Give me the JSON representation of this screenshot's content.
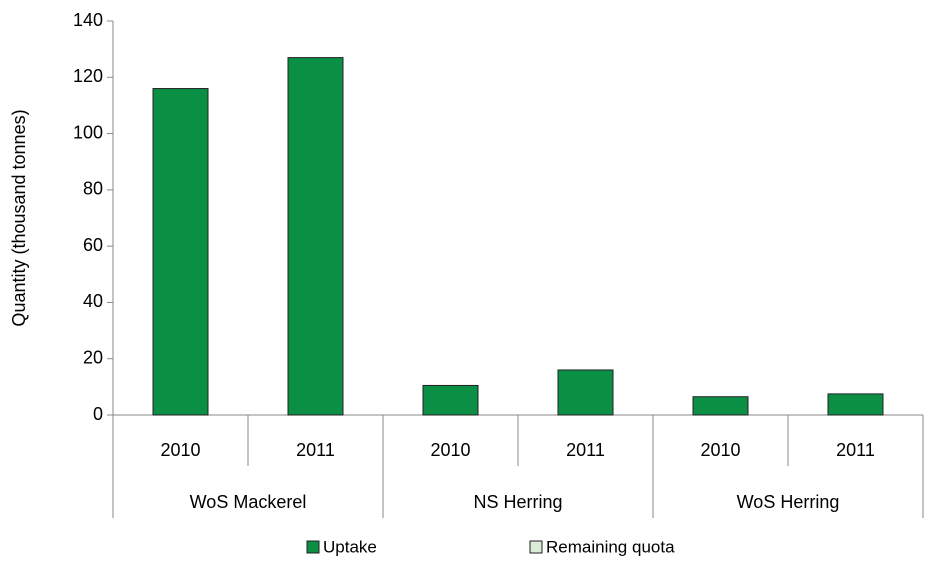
{
  "chart_data": {
    "type": "stacked-bar",
    "y_axis_label": "Quantity (thousand tonnes)",
    "groups": [
      {
        "name": "WoS Mackerel",
        "categories": [
          "2010",
          "2011"
        ]
      },
      {
        "name": "NS Herring",
        "categories": [
          "2010",
          "2011"
        ]
      },
      {
        "name": "WoS Herring",
        "categories": [
          "2010",
          "2011"
        ]
      }
    ],
    "series": [
      {
        "name": "Uptake",
        "color": "#0a8f45",
        "values": [
          116,
          127,
          10.5,
          16,
          6.5,
          7.5
        ]
      },
      {
        "name": "Remaining quota",
        "color": "#d9ecd5",
        "values": [
          0,
          0,
          0,
          0,
          0,
          0
        ]
      }
    ],
    "ylim": [
      0,
      140
    ],
    "yticks": [
      0,
      20,
      40,
      60,
      80,
      100,
      120,
      140
    ],
    "legend": "bottom"
  }
}
